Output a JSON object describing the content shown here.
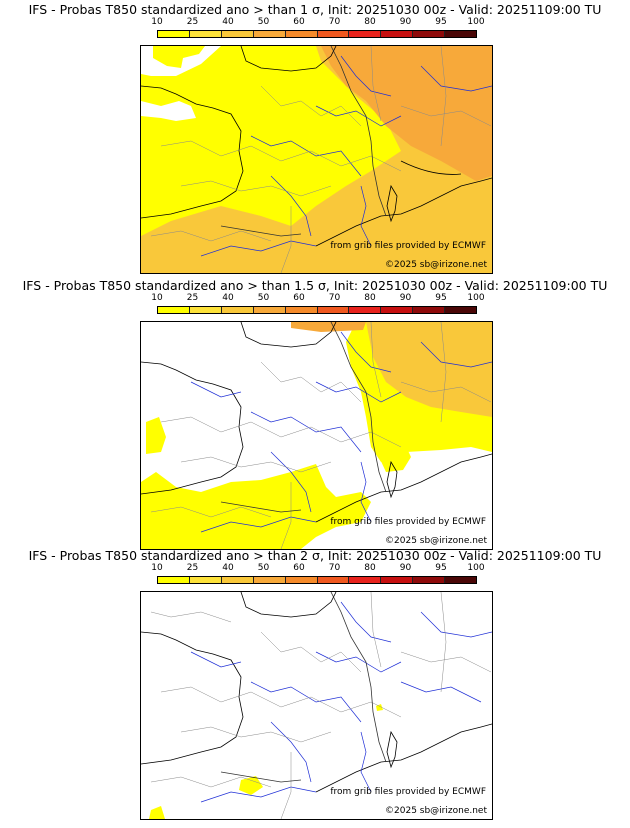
{
  "panels": [
    {
      "title": "IFS - Probas T850  standardized ano > than 1 σ, Init: 20251030 00z - Valid: 20251109:00 TU",
      "threshold": "1 σ",
      "init": "20251030 00z",
      "valid": "20251109:00 TU"
    },
    {
      "title": "IFS - Probas T850  standardized ano > than 1.5 σ, Init: 20251030 00z - Valid: 20251109:00 TU",
      "threshold": "1.5 σ",
      "init": "20251030 00z",
      "valid": "20251109:00 TU"
    },
    {
      "title": "IFS - Probas T850  standardized ano > than 2 σ, Init: 20251030 00z - Valid: 20251109:00 TU",
      "threshold": "2 σ",
      "init": "20251030 00z",
      "valid": "20251109:00 TU"
    }
  ],
  "scale": {
    "ticks": [
      "10",
      "25",
      "40",
      "50",
      "60",
      "70",
      "80",
      "90",
      "95",
      "100"
    ],
    "colors": [
      "#ffff00",
      "#fde23a",
      "#f9c83a",
      "#f7a93a",
      "#f58a2a",
      "#f0581f",
      "#e8221c",
      "#c60f0f",
      "#8e0a0a",
      "#4a0606"
    ]
  },
  "credits": {
    "grib": "from grib files provided by ECMWF",
    "copyright": "©2025 sb@irizone.net"
  },
  "colors": {
    "yellow": "#ffff00",
    "light_orange": "#f9c83a",
    "orange": "#f7a93a",
    "coast": "#000000",
    "rivers": "#1f2fd6",
    "borders": "#9a9a9a"
  }
}
